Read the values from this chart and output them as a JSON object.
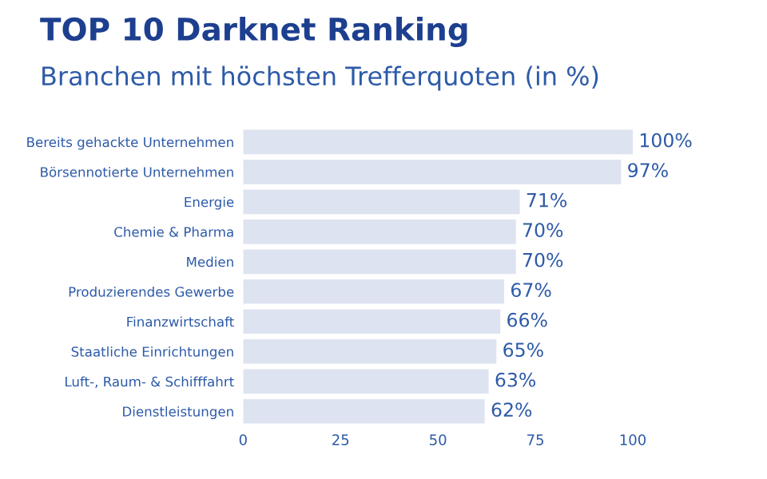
{
  "chart_data": {
    "type": "bar",
    "orientation": "horizontal",
    "title": "TOP 10 Darknet Ranking",
    "subtitle": "Branchen mit höchsten Trefferquoten (in %)",
    "categories": [
      "Bereits gehackte Unternehmen",
      "Börsennotierte Unternehmen",
      "Energie",
      "Chemie & Pharma",
      "Medien",
      "Produzierendes Gewerbe",
      "Finanzwirtschaft",
      "Staatliche Einrichtungen",
      "Luft-, Raum- & Schifffahrt",
      "Dienstleistungen"
    ],
    "values": [
      100,
      97,
      71,
      70,
      70,
      67,
      66,
      65,
      63,
      62
    ],
    "value_labels": [
      "100%",
      "97%",
      "71%",
      "70%",
      "70%",
      "67%",
      "66%",
      "65%",
      "63%",
      "62%"
    ],
    "color": "#dde3f0",
    "xlim": [
      0,
      100
    ],
    "xticks": [
      0,
      25,
      50,
      75,
      100
    ],
    "grid": false
  }
}
